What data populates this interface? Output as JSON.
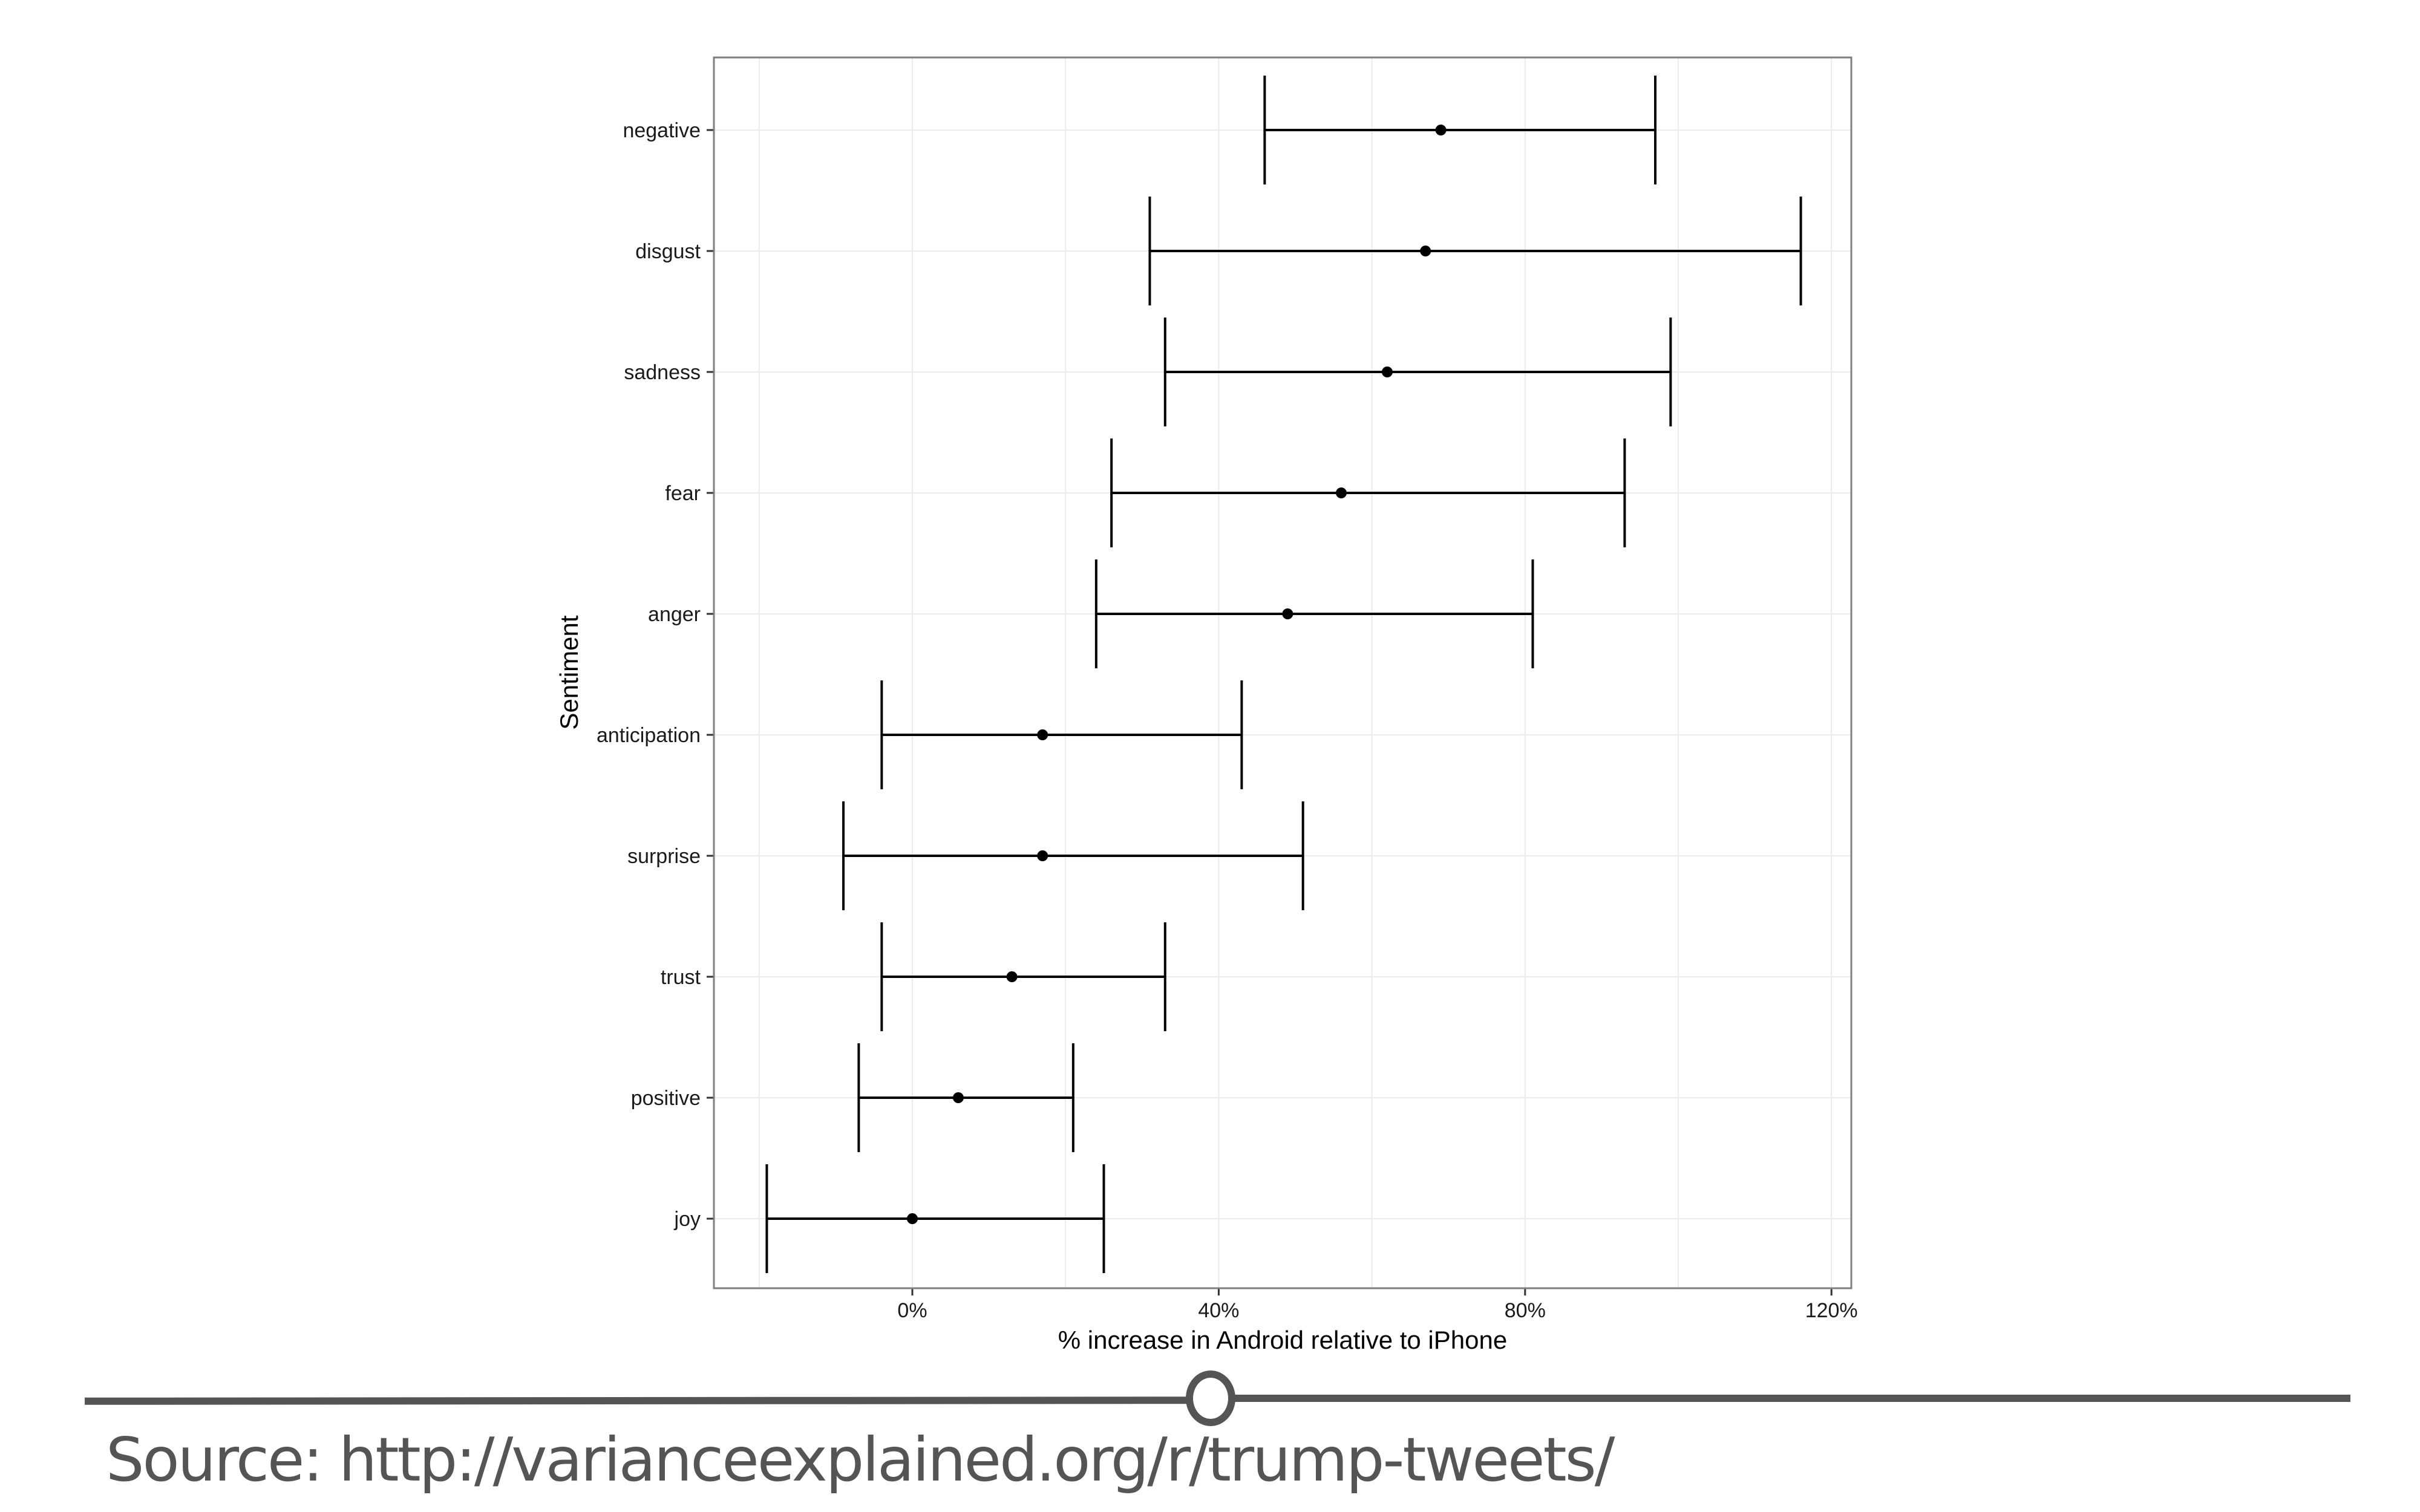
{
  "chart_data": {
    "type": "errorbar",
    "title": "",
    "xlabel": "% increase in Android relative to iPhone",
    "ylabel": "Sentiment",
    "xlim": [
      -0.26,
      1.23
    ],
    "xticks": [
      0,
      0.4,
      0.8,
      1.2
    ],
    "xtick_labels": [
      "0%",
      "40%",
      "80%",
      "120%"
    ],
    "grid": true,
    "categories": [
      "negative",
      "disgust",
      "sadness",
      "fear",
      "anger",
      "anticipation",
      "surprise",
      "trust",
      "positive",
      "joy"
    ],
    "estimate": [
      0.69,
      0.67,
      0.62,
      0.56,
      0.49,
      0.17,
      0.17,
      0.13,
      0.06,
      0.0
    ],
    "lower": [
      0.46,
      0.31,
      0.33,
      0.26,
      0.24,
      -0.04,
      -0.09,
      -0.04,
      -0.07,
      -0.19
    ],
    "upper": [
      0.97,
      1.16,
      0.99,
      0.93,
      0.81,
      0.43,
      0.51,
      0.33,
      0.21,
      0.25
    ]
  },
  "source": {
    "text": "Source: http://varianceexplained.org/r/trump-tweets/"
  },
  "colors": {
    "mark": "#000000",
    "divider": "#555555",
    "source_text": "#555555",
    "grid": "#ebebeb",
    "panel_border": "#7f7f7f"
  }
}
